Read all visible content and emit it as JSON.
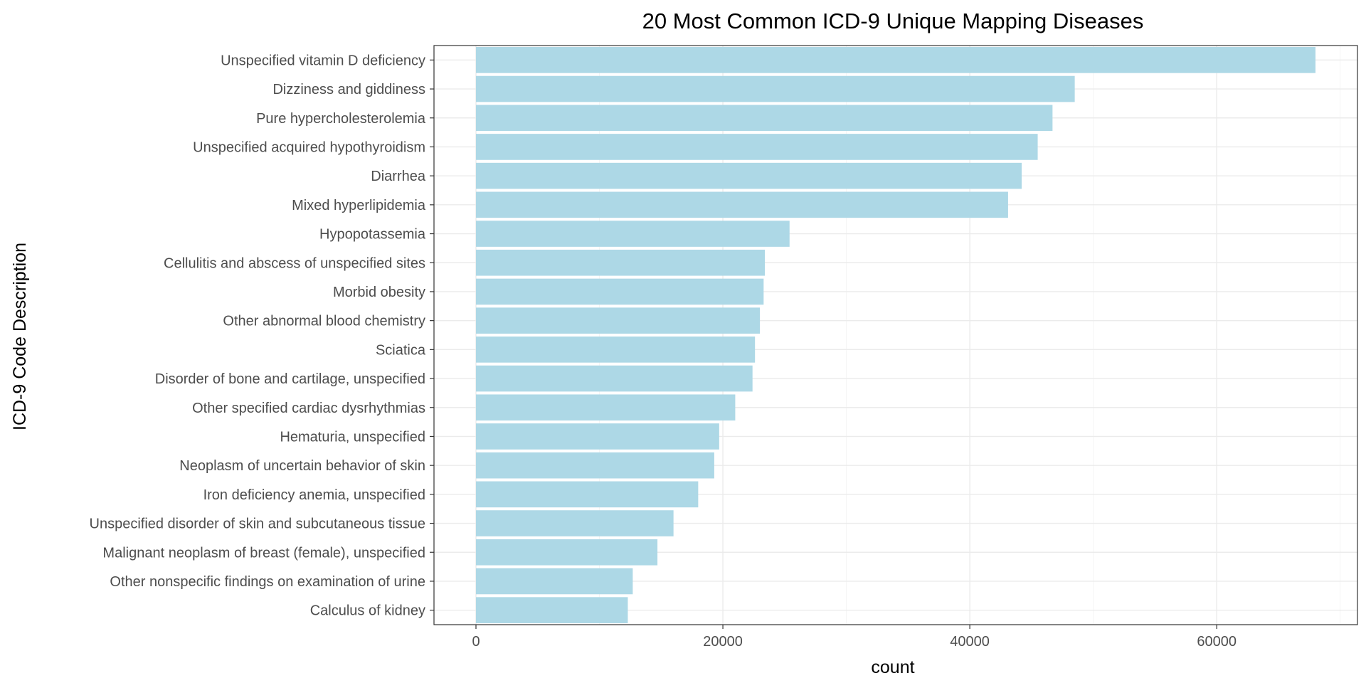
{
  "colors": {
    "bar": "#add8e6",
    "grid_major": "#ebebeb",
    "grid_minor": "#f5f5f5",
    "panel_border": "#333333",
    "tick_mark": "#333333"
  },
  "chart_data": {
    "type": "bar",
    "orientation": "horizontal",
    "title": "20 Most Common ICD-9 Unique Mapping Diseases",
    "xlabel": "count",
    "ylabel": "ICD-9 Code Description",
    "xlim": [
      -3400,
      71400
    ],
    "xticks": [
      0,
      20000,
      40000,
      60000
    ],
    "grid": true,
    "legend": "none",
    "categories": [
      "Unspecified vitamin D deficiency",
      "Dizziness and giddiness",
      "Pure hypercholesterolemia",
      "Unspecified acquired hypothyroidism",
      "Diarrhea",
      "Mixed hyperlipidemia",
      "Hypopotassemia",
      "Cellulitis and abscess of unspecified sites",
      "Morbid obesity",
      "Other abnormal blood chemistry",
      "Sciatica",
      "Disorder of bone and cartilage, unspecified",
      "Other specified cardiac dysrhythmias",
      "Hematuria, unspecified",
      "Neoplasm of uncertain behavior of skin",
      "Iron deficiency anemia, unspecified",
      "Unspecified disorder of skin and subcutaneous tissue",
      "Malignant neoplasm of breast (female), unspecified",
      "Other nonspecific findings on examination of urine",
      "Calculus of kidney"
    ],
    "values": [
      68000,
      48500,
      46700,
      45500,
      44200,
      43100,
      25400,
      23400,
      23300,
      23000,
      22600,
      22400,
      21000,
      19700,
      19300,
      18000,
      16000,
      14700,
      12700,
      12300
    ]
  }
}
